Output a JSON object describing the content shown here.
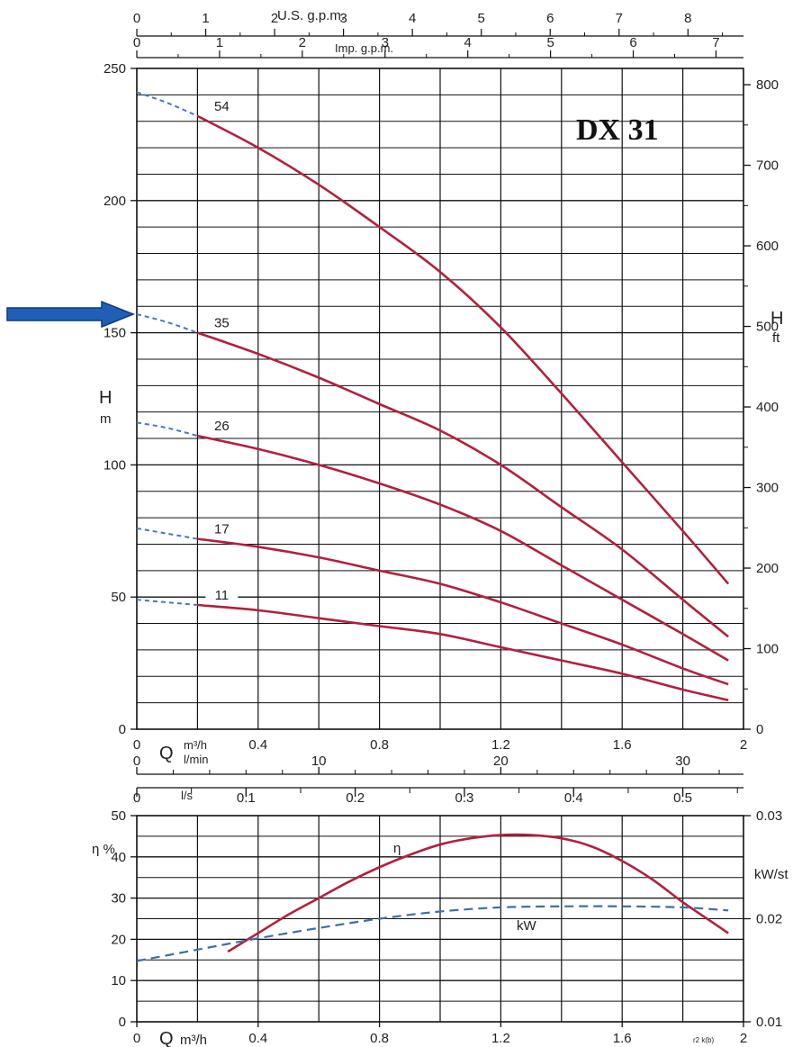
{
  "colors": {
    "curve": "#b3203d",
    "extrapolation": "#4a74c7",
    "kw_curve": "#3f6fa8",
    "grid": "#111111",
    "arrow": "#1f5fb8",
    "arrow_edge": "#0c3a7a"
  },
  "upper_chart": {
    "title": "DX 31",
    "top_axis_1": {
      "label": "U.S. g.p.m.",
      "ticks": [
        "0",
        "1",
        "2",
        "3",
        "4",
        "5",
        "6",
        "7",
        "8"
      ]
    },
    "top_axis_2": {
      "label": "Imp. g.p.m.",
      "ticks": [
        "0",
        "1",
        "2",
        "3",
        "4",
        "5",
        "6",
        "7"
      ]
    },
    "left_axis": {
      "label_main": "H",
      "label_unit": "m",
      "ticks": [
        "0",
        "50",
        "100",
        "150",
        "200",
        "250"
      ]
    },
    "right_axis": {
      "label_main": "H",
      "label_unit": "ft",
      "ticks": [
        "0",
        "100",
        "200",
        "300",
        "400",
        "500",
        "600",
        "700",
        "800"
      ]
    },
    "bottom_axis_q": {
      "label": "Q",
      "unit_1": "m³/h",
      "unit_2": "l/min",
      "unit_3": "l/s"
    },
    "m3h_ticks": [
      "0",
      "0.4",
      "0.8",
      "1.2",
      "1.6",
      "2"
    ],
    "lmin_ticks": [
      "0",
      "10",
      "20",
      "30"
    ],
    "ls_ticks": [
      "0",
      "0.1",
      "0.2",
      "0.3",
      "0.4",
      "0.5"
    ]
  },
  "lower_chart": {
    "left_axis": {
      "label": "η %",
      "ticks": [
        "0",
        "10",
        "20",
        "30",
        "40",
        "50"
      ]
    },
    "right_axis": {
      "label": "kW/st",
      "ticks": [
        "0.01",
        "0.02",
        "0.03"
      ]
    },
    "bottom_axis": {
      "label": "Q",
      "unit": "m³/h",
      "ticks": [
        "0",
        "0.4",
        "0.8",
        "1.2",
        "1.6",
        "2"
      ]
    },
    "eta_label": "η",
    "kw_label": "kW",
    "footnote": "r2 k(b)"
  },
  "chart_data": [
    {
      "type": "line",
      "title": "DX 31",
      "xlabel": "Q m³/h",
      "ylabel": "H m",
      "xlim": [
        0,
        2
      ],
      "ylim": [
        0,
        250
      ],
      "grid": true,
      "series": [
        {
          "name": "54",
          "x": [
            0.2,
            0.4,
            0.6,
            0.8,
            1.0,
            1.2,
            1.4,
            1.6,
            1.8,
            1.95
          ],
          "y": [
            232,
            220,
            206,
            190,
            173,
            152,
            127,
            101,
            75,
            55
          ]
        },
        {
          "name": "35",
          "x": [
            0.2,
            0.4,
            0.6,
            0.8,
            1.0,
            1.2,
            1.4,
            1.6,
            1.8,
            1.95
          ],
          "y": [
            150,
            142,
            133,
            123,
            113,
            100,
            84,
            68,
            49,
            35
          ]
        },
        {
          "name": "26",
          "x": [
            0.2,
            0.4,
            0.6,
            0.8,
            1.0,
            1.2,
            1.4,
            1.6,
            1.8,
            1.95
          ],
          "y": [
            111,
            106,
            100,
            93,
            85,
            75,
            62,
            49,
            36,
            26
          ]
        },
        {
          "name": "17",
          "x": [
            0.2,
            0.4,
            0.6,
            0.8,
            1.0,
            1.2,
            1.4,
            1.6,
            1.8,
            1.95
          ],
          "y": [
            72,
            69,
            65,
            60,
            55,
            48,
            40,
            32,
            23,
            17
          ]
        },
        {
          "name": "11",
          "x": [
            0.2,
            0.4,
            0.6,
            0.8,
            1.0,
            1.2,
            1.4,
            1.6,
            1.8,
            1.95
          ],
          "y": [
            47,
            45,
            42,
            39,
            36,
            31,
            26,
            21,
            15,
            11
          ]
        }
      ],
      "extrapolated_start": [
        {
          "name": "54",
          "x": [
            0,
            0.1,
            0.2
          ],
          "y": [
            241,
            237,
            232
          ]
        },
        {
          "name": "35",
          "x": [
            0,
            0.1,
            0.2
          ],
          "y": [
            157,
            154,
            150
          ]
        },
        {
          "name": "26",
          "x": [
            0,
            0.1,
            0.2
          ],
          "y": [
            116,
            114,
            111
          ]
        },
        {
          "name": "17",
          "x": [
            0,
            0.1,
            0.2
          ],
          "y": [
            76,
            74,
            72
          ]
        },
        {
          "name": "11",
          "x": [
            0,
            0.1,
            0.2
          ],
          "y": [
            49,
            48,
            47
          ]
        }
      ],
      "marker_arrow_y": 157
    },
    {
      "type": "line",
      "xlabel": "Q m³/h",
      "ylabel": "η %",
      "y2label": "kW/st",
      "xlim": [
        0,
        2
      ],
      "ylim": [
        0,
        50
      ],
      "y2lim": [
        0.01,
        0.03
      ],
      "grid": true,
      "series": [
        {
          "name": "η",
          "axis": "left",
          "x": [
            0.3,
            0.4,
            0.5,
            0.6,
            0.7,
            0.8,
            0.9,
            1.0,
            1.1,
            1.2,
            1.3,
            1.4,
            1.5,
            1.6,
            1.7,
            1.8,
            1.9,
            1.95
          ],
          "y": [
            17,
            21.5,
            26,
            30,
            34,
            37.5,
            40.5,
            43,
            44.5,
            45.3,
            45.3,
            44.5,
            42.5,
            39,
            34.5,
            29,
            24,
            21.5
          ]
        },
        {
          "name": "kW",
          "axis": "right",
          "x": [
            0,
            0.2,
            0.4,
            0.6,
            0.8,
            1.0,
            1.2,
            1.4,
            1.6,
            1.8,
            1.95
          ],
          "y": [
            0.0159,
            0.017,
            0.0181,
            0.0191,
            0.02,
            0.0207,
            0.0211,
            0.0212,
            0.0212,
            0.0211,
            0.0208
          ]
        }
      ]
    }
  ]
}
